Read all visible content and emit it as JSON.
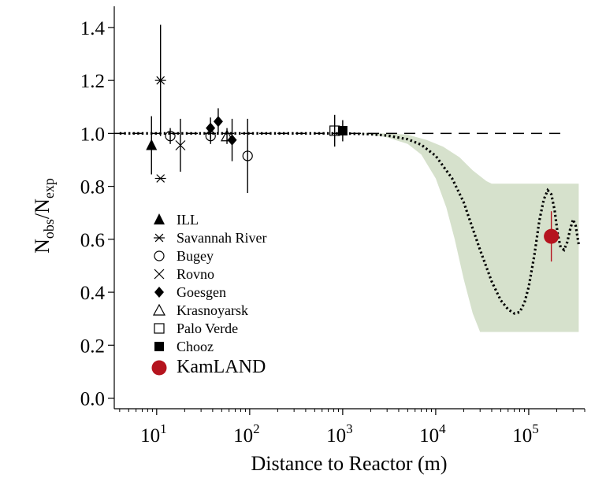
{
  "chart_data": {
    "type": "scatter",
    "xlabel": "Distance to Reactor (m)",
    "ylabel": {
      "main": "N",
      "sub1": "obs",
      "slash": "/N",
      "sub2": "exp"
    },
    "xscale": "log",
    "xlim": [
      3.5,
      400000
    ],
    "ylim": [
      -0.04,
      1.48
    ],
    "xticks": [
      {
        "base": "10",
        "exp": "1",
        "value": 10
      },
      {
        "base": "10",
        "exp": "2",
        "value": 100
      },
      {
        "base": "10",
        "exp": "3",
        "value": 1000
      },
      {
        "base": "10",
        "exp": "4",
        "value": 10000
      },
      {
        "base": "10",
        "exp": "5",
        "value": 100000
      }
    ],
    "yticks": [
      "0.0",
      "0.2",
      "0.4",
      "0.6",
      "0.8",
      "1.0",
      "1.2",
      "1.4"
    ],
    "reference_line": {
      "y": 1.0,
      "style": "dashed"
    },
    "legend_position": "lower-left",
    "series": [
      {
        "name": "ILL",
        "marker": "triangle-filled",
        "color": "#000000",
        "points": [
          {
            "x": 8.8,
            "y": 0.955,
            "err": 0.11
          }
        ]
      },
      {
        "name": "Savannah River",
        "marker": "asterisk",
        "color": "#000000",
        "points": [
          {
            "x": 11,
            "y": 1.2,
            "err": 0.21
          },
          {
            "x": 11,
            "y": 0.83,
            "err": 0
          }
        ]
      },
      {
        "name": "Bugey",
        "marker": "circle-open",
        "color": "#000000",
        "points": [
          {
            "x": 14,
            "y": 0.99,
            "err": 0.03
          },
          {
            "x": 38,
            "y": 0.99,
            "err": 0.03
          },
          {
            "x": 95,
            "y": 0.915,
            "err": 0.14
          }
        ]
      },
      {
        "name": "Rovno",
        "marker": "cross",
        "color": "#000000",
        "points": [
          {
            "x": 18,
            "y": 0.955,
            "err": 0.1
          }
        ]
      },
      {
        "name": "Goesgen",
        "marker": "diamond-filled",
        "color": "#000000",
        "points": [
          {
            "x": 37.9,
            "y": 1.02,
            "err": 0.04
          },
          {
            "x": 45.9,
            "y": 1.045,
            "err": 0.05
          },
          {
            "x": 64.7,
            "y": 0.975,
            "err": 0.08
          }
        ]
      },
      {
        "name": "Krasnoyarsk",
        "marker": "triangle-open",
        "color": "#000000",
        "points": [
          {
            "x": 57,
            "y": 0.99,
            "err": 0.03
          }
        ]
      },
      {
        "name": "Palo Verde",
        "marker": "square-open",
        "color": "#000000",
        "points": [
          {
            "x": 820,
            "y": 1.01,
            "err": 0.06
          }
        ]
      },
      {
        "name": "Chooz",
        "marker": "square-filled",
        "color": "#000000",
        "points": [
          {
            "x": 1000,
            "y": 1.01,
            "err": 0.04
          }
        ]
      },
      {
        "name": "KamLAND",
        "marker": "circle-filled-large",
        "color": "#b5141e",
        "points": [
          {
            "x": 175000,
            "y": 0.611,
            "err": 0.095
          }
        ]
      }
    ],
    "oscillation_curve": {
      "style": "dotted",
      "color": "#000000",
      "points": [
        [
          4,
          1.0
        ],
        [
          100,
          1.0
        ],
        [
          1000,
          1.0
        ],
        [
          2000,
          0.997
        ],
        [
          3000,
          0.992
        ],
        [
          5000,
          0.978
        ],
        [
          7000,
          0.957
        ],
        [
          10000,
          0.915
        ],
        [
          15000,
          0.83
        ],
        [
          20000,
          0.74
        ],
        [
          25000,
          0.64
        ],
        [
          30000,
          0.56
        ],
        [
          40000,
          0.44
        ],
        [
          50000,
          0.37
        ],
        [
          60000,
          0.335
        ],
        [
          70000,
          0.32
        ],
        [
          80000,
          0.325
        ],
        [
          90000,
          0.36
        ],
        [
          100000,
          0.42
        ],
        [
          115000,
          0.54
        ],
        [
          130000,
          0.67
        ],
        [
          145000,
          0.75
        ],
        [
          160000,
          0.785
        ],
        [
          175000,
          0.77
        ],
        [
          190000,
          0.71
        ],
        [
          205000,
          0.62
        ],
        [
          220000,
          0.57
        ],
        [
          240000,
          0.56
        ],
        [
          260000,
          0.59
        ],
        [
          280000,
          0.64
        ],
        [
          300000,
          0.675
        ],
        [
          320000,
          0.65
        ],
        [
          345000,
          0.58
        ]
      ]
    },
    "allowed_band": {
      "color": "#d6e1cc",
      "upper": [
        [
          1200,
          1.0
        ],
        [
          3000,
          1.0
        ],
        [
          5000,
          0.995
        ],
        [
          8000,
          0.975
        ],
        [
          12000,
          0.95
        ],
        [
          18000,
          0.91
        ],
        [
          25000,
          0.86
        ],
        [
          35000,
          0.82
        ],
        [
          40000,
          0.81
        ],
        [
          345000,
          0.81
        ]
      ],
      "lower": [
        [
          1200,
          1.0
        ],
        [
          2000,
          0.995
        ],
        [
          3000,
          0.985
        ],
        [
          5000,
          0.96
        ],
        [
          7000,
          0.92
        ],
        [
          10000,
          0.83
        ],
        [
          13000,
          0.72
        ],
        [
          16000,
          0.6
        ],
        [
          20000,
          0.45
        ],
        [
          25000,
          0.32
        ],
        [
          30000,
          0.25
        ],
        [
          345000,
          0.25
        ]
      ]
    }
  }
}
